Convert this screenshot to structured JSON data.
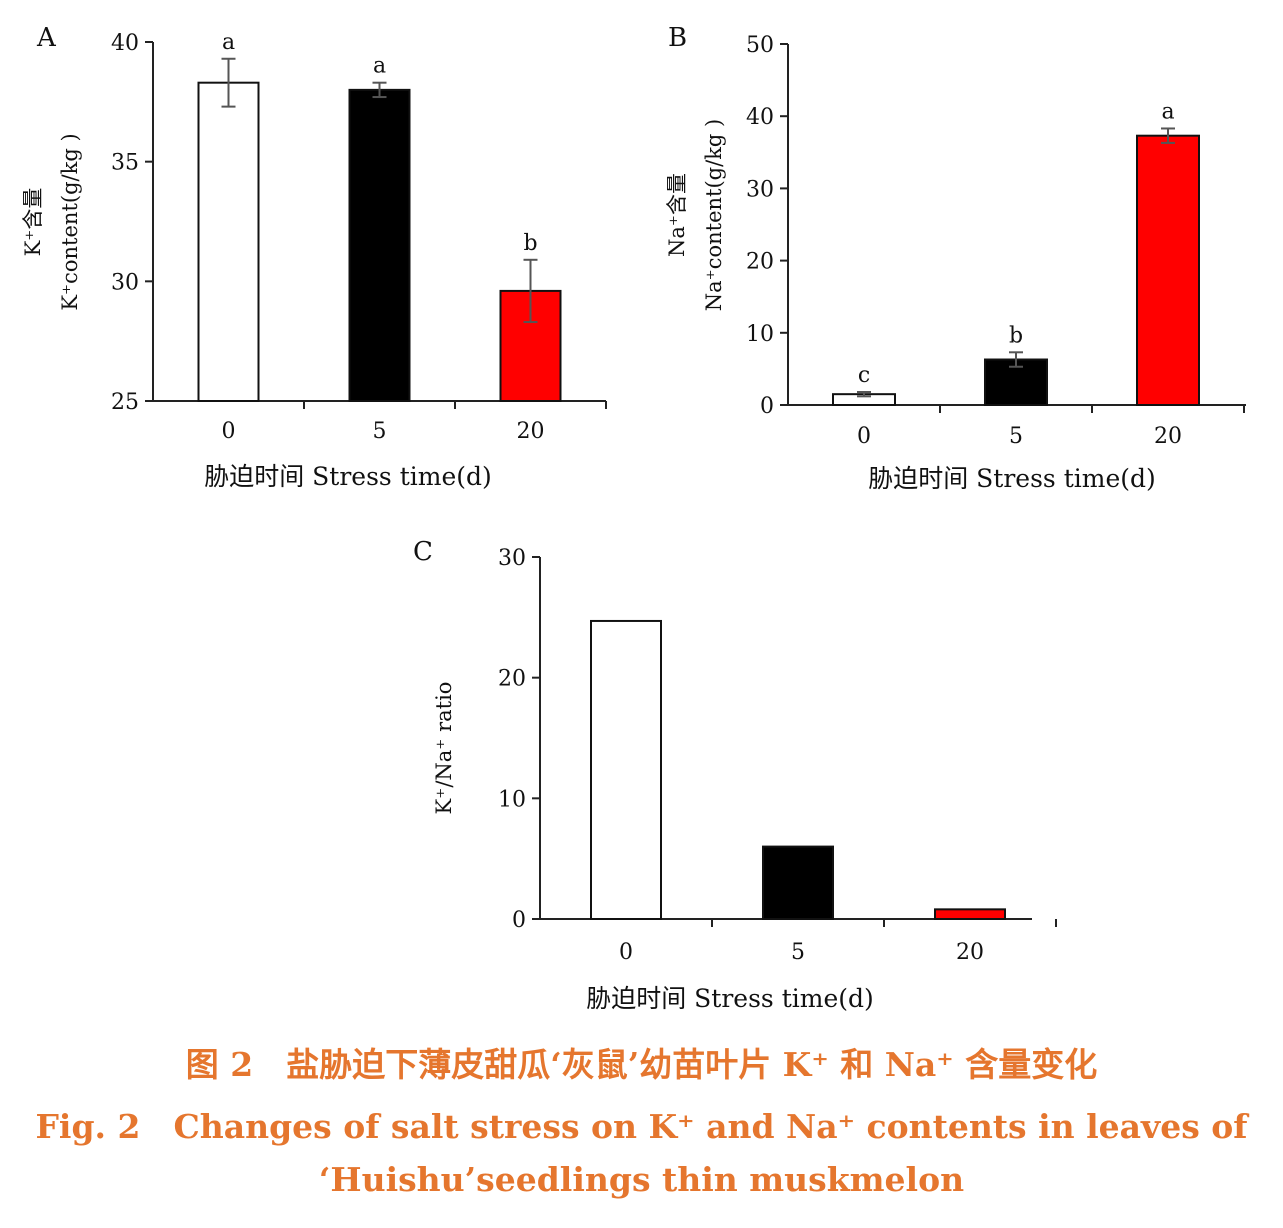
{
  "colors": {
    "white_bar": "#ffffff",
    "black_bar": "#000000",
    "red_bar": "#ff0000",
    "caption": "#E5762E"
  },
  "chart_data": [
    {
      "panel": "A",
      "type": "bar",
      "categories": [
        "0",
        "5",
        "20"
      ],
      "values": [
        38.3,
        38.0,
        29.6
      ],
      "errors": [
        1.0,
        0.3,
        1.3
      ],
      "significance": [
        "a",
        "a",
        "b"
      ],
      "bar_colors": [
        "#ffffff",
        "#000000",
        "#ff0000"
      ],
      "ylim": [
        25,
        40
      ],
      "yticks": [
        "25",
        "30",
        "35",
        "40"
      ],
      "ylabel_cn": "K⁺含量",
      "ylabel_en": "K⁺content(g/kg )",
      "xlabel": "胁迫时间  Stress time(d)"
    },
    {
      "panel": "B",
      "type": "bar",
      "categories": [
        "0",
        "5",
        "20"
      ],
      "values": [
        1.5,
        6.3,
        37.3
      ],
      "errors": [
        0.3,
        1.0,
        1.0
      ],
      "significance": [
        "c",
        "b",
        "a"
      ],
      "bar_colors": [
        "#ffffff",
        "#000000",
        "#ff0000"
      ],
      "ylim": [
        0,
        50
      ],
      "yticks": [
        "0",
        "10",
        "20",
        "30",
        "40",
        "50"
      ],
      "ylabel_cn": "Na⁺含量",
      "ylabel_en": "Na⁺content(g/kg )",
      "xlabel": "胁迫时间  Stress time(d)"
    },
    {
      "panel": "C",
      "type": "bar",
      "categories": [
        "0",
        "5",
        "20"
      ],
      "values": [
        24.7,
        6.0,
        0.8
      ],
      "bar_colors": [
        "#ffffff",
        "#000000",
        "#ff0000"
      ],
      "ylim": [
        0,
        30
      ],
      "yticks": [
        "0",
        "10",
        "20",
        "30"
      ],
      "ylabel_en": "K⁺/Na⁺ ratio",
      "xlabel": "胁迫时间  Stress time(d)"
    }
  ],
  "caption": {
    "cn": "图 2　盐胁迫下薄皮甜瓜‘灰鼠’幼苗叶片 K⁺ 和 Na⁺ 含量变化",
    "en_line1": "Fig. 2　Changes of salt stress on K⁺ and Na⁺ contents in leaves of",
    "en_line2": "‘Huishu’seedlings thin muskmelon"
  }
}
